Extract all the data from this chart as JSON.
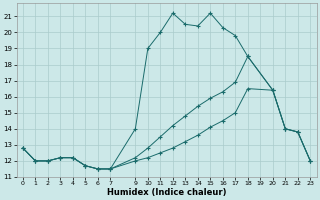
{
  "xlabel": "Humidex (Indice chaleur)",
  "x_ticks": [
    0,
    1,
    2,
    3,
    4,
    5,
    6,
    7,
    9,
    10,
    11,
    12,
    13,
    14,
    15,
    16,
    17,
    18,
    19,
    20,
    21,
    22,
    23
  ],
  "xlim": [
    -0.5,
    23.5
  ],
  "ylim": [
    11.0,
    21.8
  ],
  "yticks": [
    11,
    12,
    13,
    14,
    15,
    16,
    17,
    18,
    19,
    20,
    21
  ],
  "bg_color": "#cce8e8",
  "grid_color": "#aacccc",
  "line_color": "#1a6b6b",
  "line1_x": [
    0,
    1,
    2,
    3,
    4,
    5,
    6,
    7,
    9,
    10,
    11,
    12,
    13,
    14,
    15,
    16,
    17,
    18,
    20,
    21,
    22,
    23
  ],
  "line1_y": [
    12.8,
    12.0,
    12.0,
    12.2,
    12.2,
    11.7,
    11.5,
    11.5,
    14.0,
    19.0,
    20.0,
    21.2,
    20.5,
    20.4,
    21.2,
    20.3,
    19.8,
    18.5,
    16.4,
    14.0,
    13.8,
    12.0
  ],
  "line2_x": [
    0,
    1,
    2,
    3,
    4,
    5,
    6,
    7,
    9,
    10,
    11,
    12,
    13,
    14,
    15,
    16,
    17,
    18,
    20,
    21,
    22,
    23
  ],
  "line2_y": [
    12.8,
    12.0,
    12.0,
    12.2,
    12.2,
    11.7,
    11.5,
    11.5,
    12.2,
    12.8,
    13.5,
    14.2,
    14.8,
    15.4,
    15.9,
    16.3,
    16.9,
    18.5,
    16.4,
    14.0,
    13.8,
    12.0
  ],
  "line3_x": [
    0,
    1,
    2,
    3,
    4,
    5,
    6,
    7,
    9,
    10,
    11,
    12,
    13,
    14,
    15,
    16,
    17,
    18,
    20,
    21,
    22,
    23
  ],
  "line3_y": [
    12.8,
    12.0,
    12.0,
    12.2,
    12.2,
    11.7,
    11.5,
    11.5,
    12.0,
    12.2,
    12.5,
    12.8,
    13.2,
    13.6,
    14.1,
    14.5,
    15.0,
    16.5,
    16.4,
    14.0,
    13.8,
    12.0
  ]
}
